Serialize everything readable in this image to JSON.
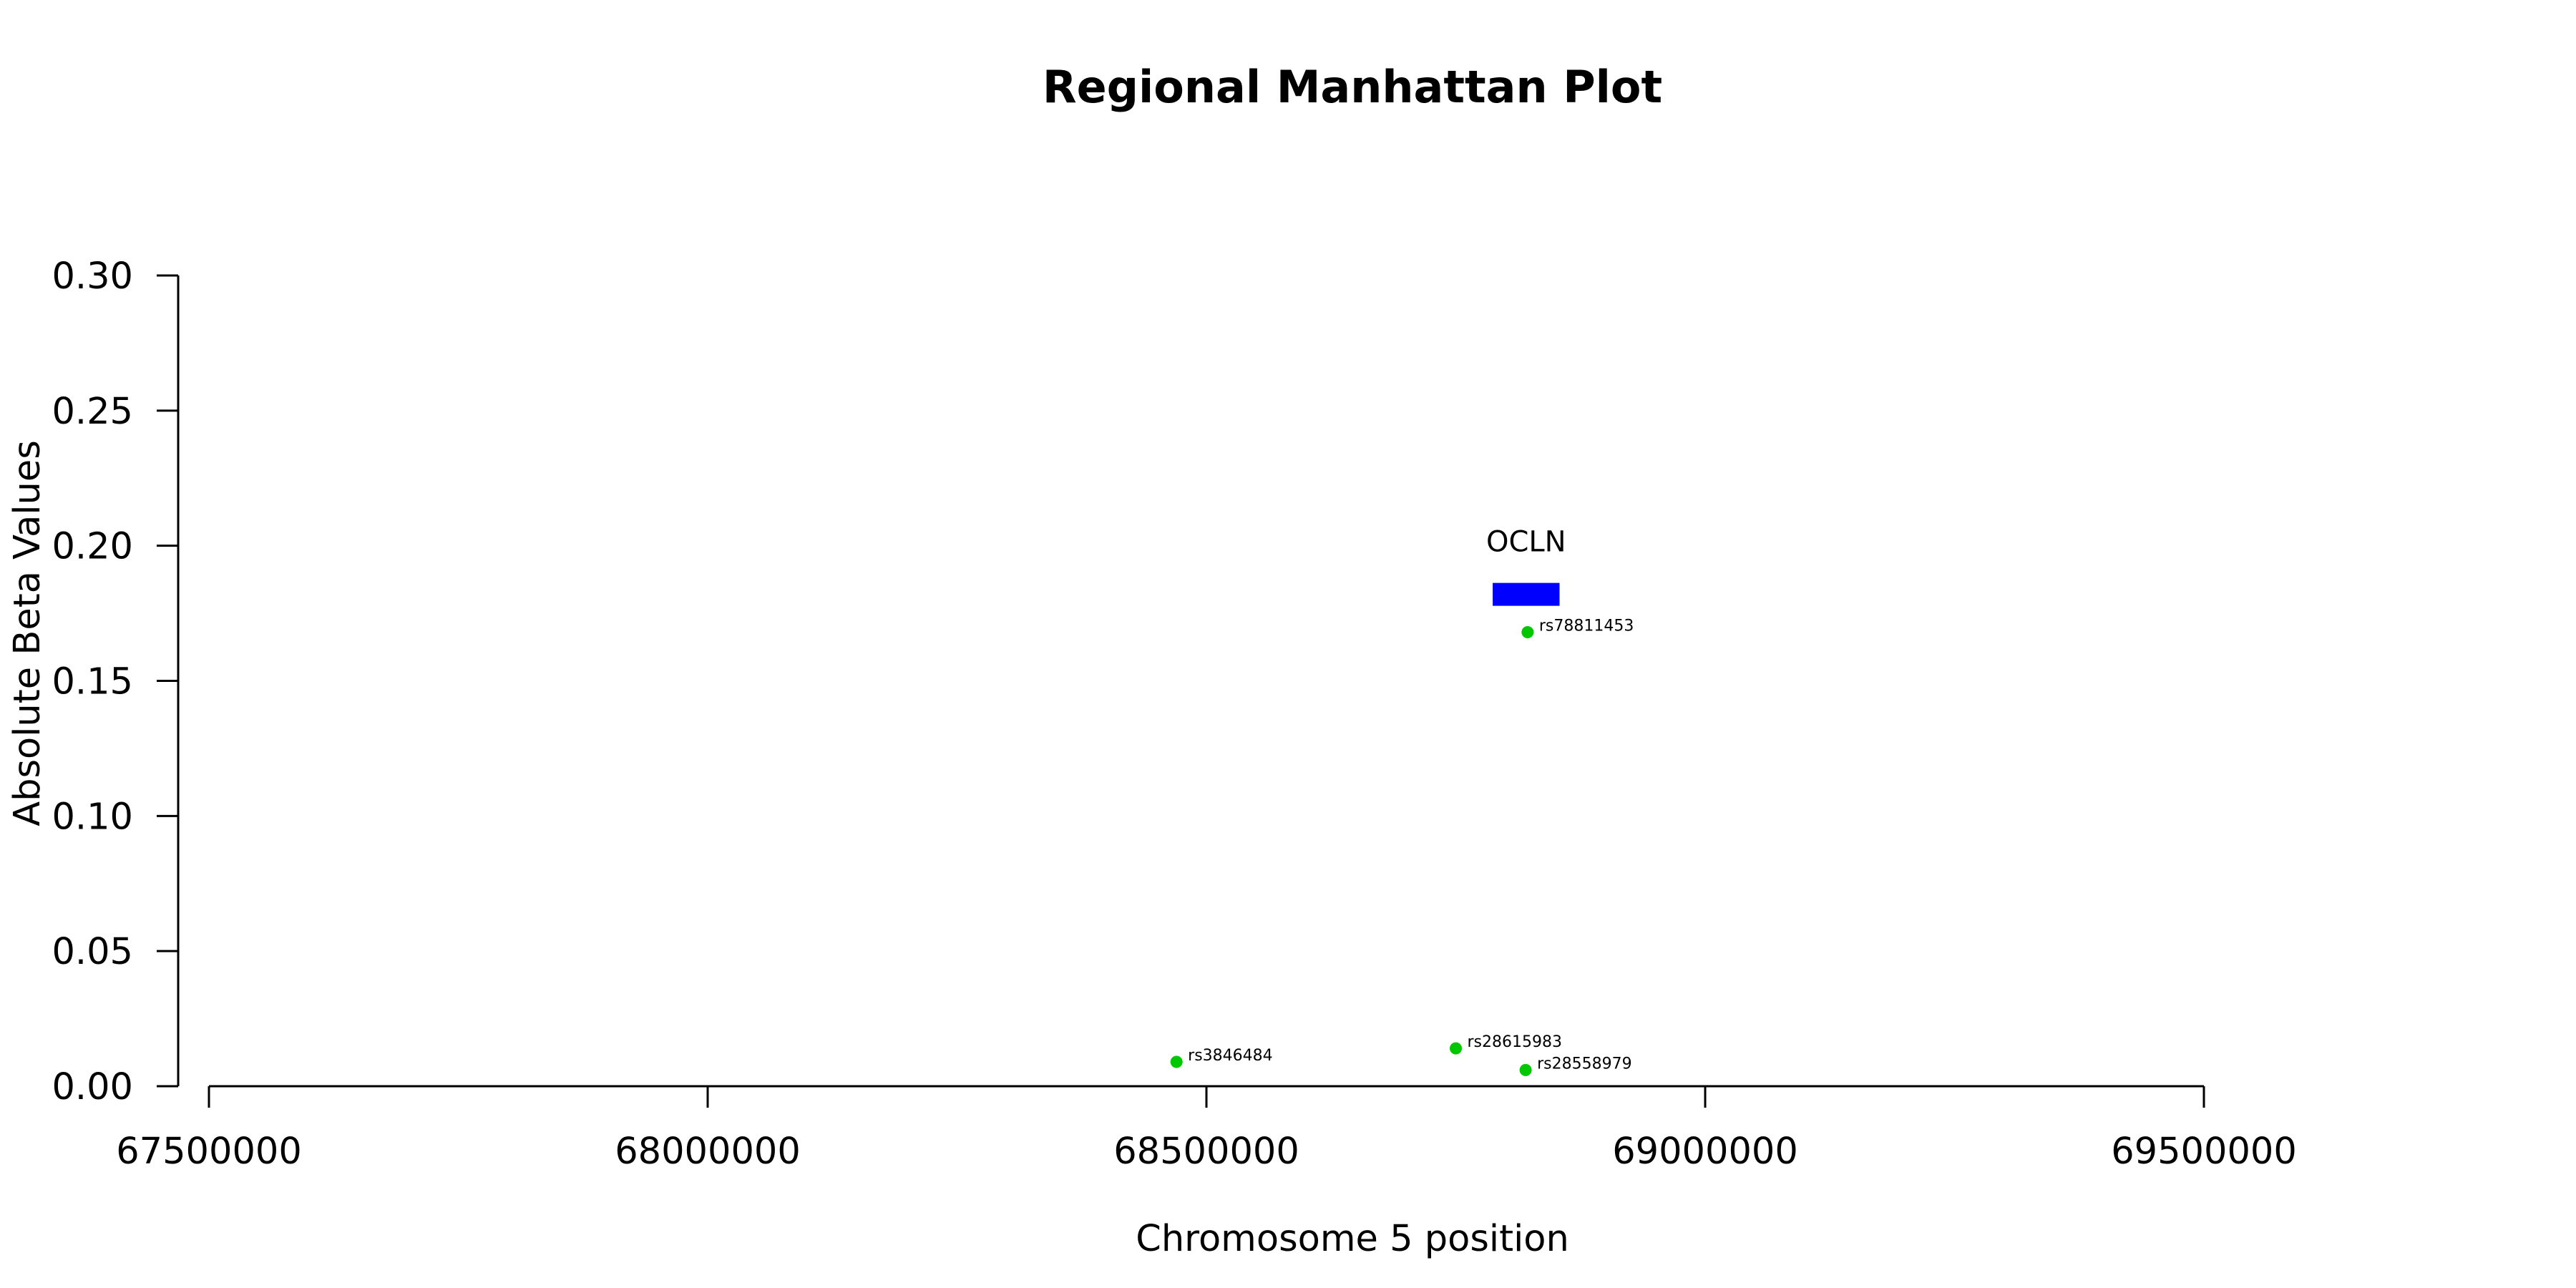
{
  "chart_data": {
    "type": "scatter",
    "title": "Regional Manhattan Plot",
    "xlabel": "Chromosome 5 position",
    "ylabel": "Absolute Beta Values",
    "xlim": [
      67500000,
      69500000
    ],
    "ylim": [
      0,
      0.3
    ],
    "x_ticks": [
      67500000,
      68000000,
      68500000,
      69000000,
      69500000
    ],
    "x_tick_labels": [
      "67500000",
      "68000000",
      "68500000",
      "69000000",
      "69500000"
    ],
    "y_ticks": [
      0,
      0.05,
      0.1,
      0.15,
      0.2,
      0.25,
      0.3
    ],
    "y_tick_labels": [
      "0.00",
      "0.05",
      "0.10",
      "0.15",
      "0.20",
      "0.25",
      "0.30"
    ],
    "grid": false,
    "point_color": "#00c800",
    "points": [
      {
        "label": "rs3846484",
        "x": 68470000,
        "y": 0.009
      },
      {
        "label": "rs28615983",
        "x": 68750000,
        "y": 0.014
      },
      {
        "label": "rs28558979",
        "x": 68820000,
        "y": 0.006
      },
      {
        "label": "rs78811453",
        "x": 68822000,
        "y": 0.168
      }
    ],
    "genes": [
      {
        "name": "OCLN",
        "start": 68787000,
        "end": 68854000,
        "y": 0.182,
        "color": "#0000ff"
      }
    ]
  }
}
